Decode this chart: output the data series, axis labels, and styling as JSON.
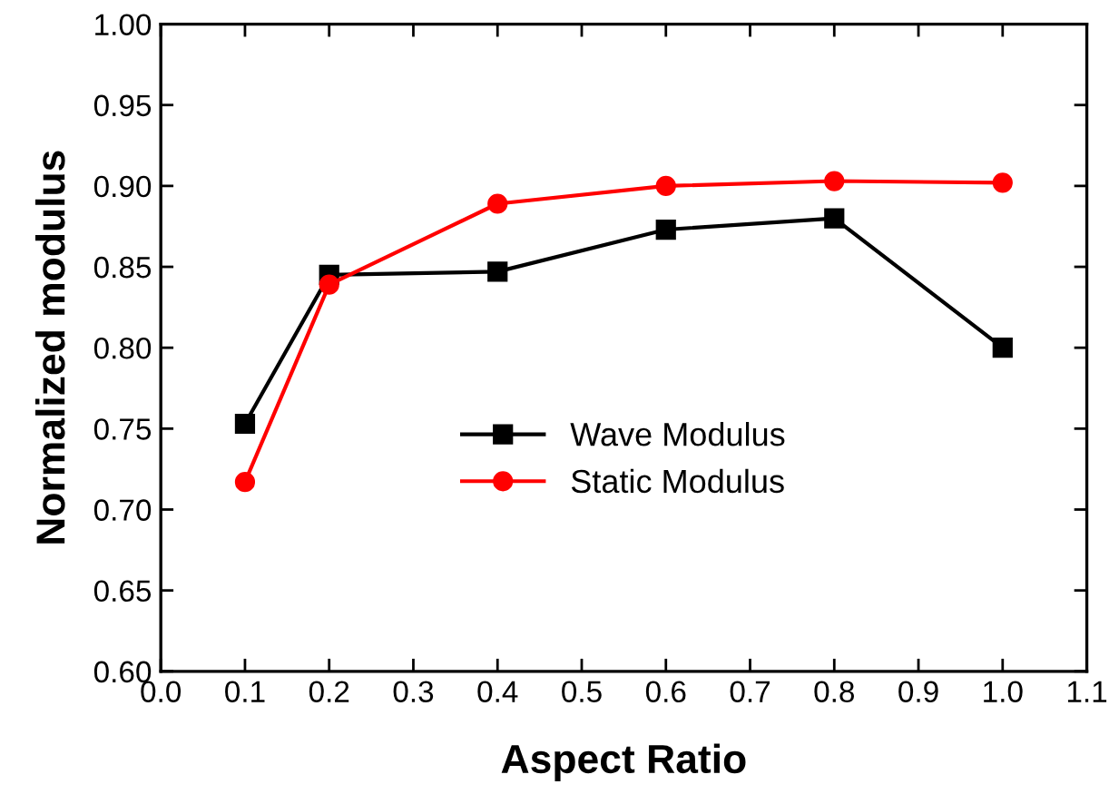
{
  "chart_data": {
    "type": "line",
    "xlabel": "Aspect Ratio",
    "ylabel": "Normalized modulus",
    "xlim": [
      0.0,
      1.1
    ],
    "ylim": [
      0.6,
      1.0
    ],
    "xticks": [
      {
        "value": 0.0,
        "label": "0.0"
      },
      {
        "value": 0.1,
        "label": "0.1"
      },
      {
        "value": 0.2,
        "label": "0.2"
      },
      {
        "value": 0.3,
        "label": "0.3"
      },
      {
        "value": 0.4,
        "label": "0.4"
      },
      {
        "value": 0.5,
        "label": "0.5"
      },
      {
        "value": 0.6,
        "label": "0.6"
      },
      {
        "value": 0.7,
        "label": "0.7"
      },
      {
        "value": 0.8,
        "label": "0.8"
      },
      {
        "value": 0.9,
        "label": "0.9"
      },
      {
        "value": 1.0,
        "label": "1.0"
      },
      {
        "value": 1.1,
        "label": "1.1"
      }
    ],
    "yticks": [
      {
        "value": 0.6,
        "label": "0.60"
      },
      {
        "value": 0.65,
        "label": "0.65"
      },
      {
        "value": 0.7,
        "label": "0.70"
      },
      {
        "value": 0.75,
        "label": "0.75"
      },
      {
        "value": 0.8,
        "label": "0.80"
      },
      {
        "value": 0.85,
        "label": "0.85"
      },
      {
        "value": 0.9,
        "label": "0.90"
      },
      {
        "value": 0.95,
        "label": "0.95"
      },
      {
        "value": 1.0,
        "label": "1.00"
      }
    ],
    "x": [
      0.1,
      0.2,
      0.4,
      0.6,
      0.8,
      1.0
    ],
    "series": [
      {
        "name": "Wave Modulus",
        "color": "#000000",
        "marker": "square",
        "values": [
          0.753,
          0.845,
          0.847,
          0.873,
          0.88,
          0.8
        ]
      },
      {
        "name": "Static Modulus",
        "color": "#ff0000",
        "marker": "circle",
        "values": [
          0.717,
          0.839,
          0.889,
          0.9,
          0.903,
          0.902
        ]
      }
    ],
    "legend": "bottom",
    "grid": false,
    "line_style": "solid"
  }
}
